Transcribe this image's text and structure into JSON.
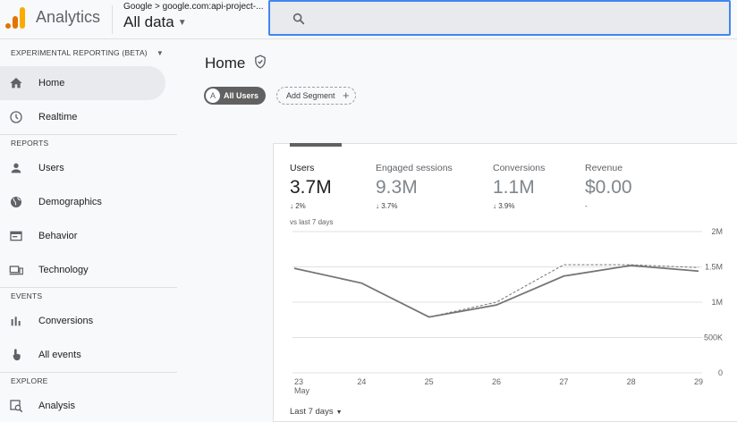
{
  "app": {
    "title": "Analytics"
  },
  "account": {
    "breadcrumb": "Google > google.com:api-project-...",
    "property": "All data"
  },
  "sidebar": {
    "header": "EXPERIMENTAL REPORTING (BETA)",
    "items_top": [
      {
        "label": "Home",
        "icon": "home-icon"
      },
      {
        "label": "Realtime",
        "icon": "clock-icon"
      }
    ],
    "reports_header": "REPORTS",
    "reports": [
      {
        "label": "Users",
        "icon": "person-icon"
      },
      {
        "label": "Demographics",
        "icon": "globe-icon"
      },
      {
        "label": "Behavior",
        "icon": "window-icon"
      },
      {
        "label": "Technology",
        "icon": "devices-icon"
      }
    ],
    "events_header": "EVENTS",
    "events": [
      {
        "label": "Conversions",
        "icon": "bar-chart-icon"
      },
      {
        "label": "All events",
        "icon": "touch-icon"
      }
    ],
    "explore_header": "EXPLORE",
    "explore": [
      {
        "label": "Analysis",
        "icon": "analysis-icon"
      }
    ]
  },
  "main": {
    "title": "Home",
    "segment_all": {
      "badge": "A",
      "label": "All Users"
    },
    "segment_add": "Add Segment",
    "metrics": [
      {
        "label": "Users",
        "value": "3.7M",
        "change": "2%",
        "direction": "down"
      },
      {
        "label": "Engaged sessions",
        "value": "9.3M",
        "change": "3.7%",
        "direction": "down"
      },
      {
        "label": "Conversions",
        "value": "1.1M",
        "change": "3.9%",
        "direction": "down"
      },
      {
        "label": "Revenue",
        "value": "$0.00",
        "change": "-",
        "direction": "none"
      }
    ],
    "comparison": "vs last 7 days",
    "date_range": "Last 7 days"
  },
  "chart_data": {
    "type": "line",
    "x": [
      "23",
      "24",
      "25",
      "26",
      "27",
      "28",
      "29"
    ],
    "x_sublabel": "May",
    "y_ticks": [
      "0",
      "500K",
      "1M",
      "1.5M",
      "2M"
    ],
    "ylim": [
      0,
      2000000
    ],
    "series": [
      {
        "style": "solid",
        "values": [
          1480000,
          1270000,
          790000,
          960000,
          1370000,
          1520000,
          1440000
        ]
      },
      {
        "style": "dashed",
        "values": [
          1480000,
          1270000,
          790000,
          1000000,
          1530000,
          1530000,
          1490000
        ]
      }
    ],
    "grid": true,
    "colors": {
      "line": "#757575",
      "grid": "#e0e0e0"
    }
  }
}
